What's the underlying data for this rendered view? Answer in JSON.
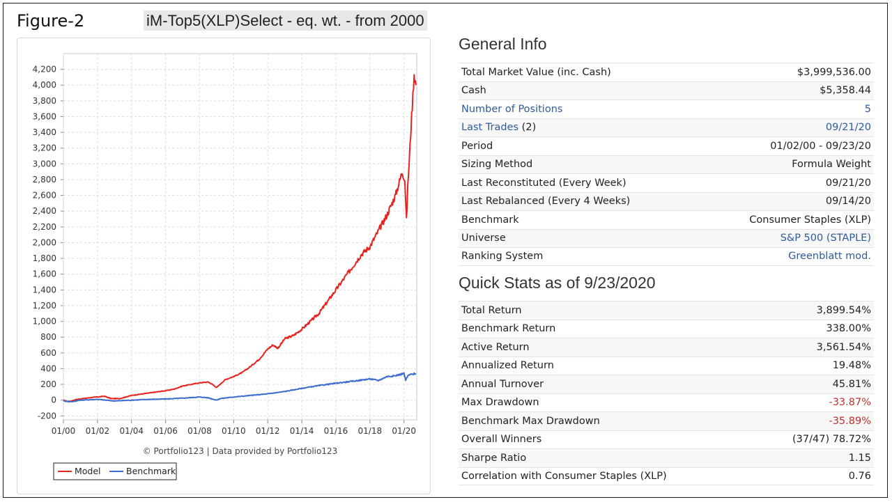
{
  "figure_label": "Figure-2",
  "figure_title": "iM-Top5(XLP)Select - eq. wt. - from 2000",
  "chart_data": {
    "type": "line",
    "x_ticks": [
      "01/00",
      "01/02",
      "01/04",
      "01/06",
      "01/08",
      "01/10",
      "01/12",
      "01/14",
      "01/16",
      "01/18",
      "01/20"
    ],
    "y_ticks": [
      -200,
      0,
      200,
      400,
      600,
      800,
      1000,
      1200,
      1400,
      1600,
      1800,
      2000,
      2200,
      2400,
      2600,
      2800,
      3000,
      3200,
      3400,
      3600,
      3800,
      4000,
      4200
    ],
    "y_tick_labels": [
      "-200",
      "0",
      "200",
      "400",
      "600",
      "800",
      "1,000",
      "1,200",
      "1,400",
      "1,600",
      "1,800",
      "2,000",
      "2,200",
      "2,400",
      "2,600",
      "2,800",
      "3,000",
      "3,200",
      "3,400",
      "3,600",
      "3,800",
      "4,000",
      "4,200"
    ],
    "xlim": [
      2000.0,
      2020.75
    ],
    "ylim": [
      -250,
      4400
    ],
    "grid": true,
    "legend_position": "bottom-left",
    "credit": "© Portfolio123 | Data provided by Portfolio123",
    "series": [
      {
        "name": "Model",
        "color": "#e8231f",
        "x": [
          2000.0,
          2000.3,
          2000.8,
          2001.5,
          2002.0,
          2002.4,
          2002.8,
          2003.3,
          2004.0,
          2005.0,
          2006.0,
          2006.5,
          2007.0,
          2007.5,
          2008.0,
          2008.5,
          2008.75,
          2009.0,
          2009.2,
          2009.5,
          2010.0,
          2010.5,
          2011.0,
          2011.5,
          2012.0,
          2012.3,
          2012.6,
          2013.0,
          2013.5,
          2014.0,
          2014.5,
          2015.0,
          2015.5,
          2016.0,
          2016.5,
          2017.0,
          2017.5,
          2018.0,
          2018.5,
          2019.0,
          2019.5,
          2019.9,
          2020.05,
          2020.15,
          2020.22,
          2020.3,
          2020.45,
          2020.6,
          2020.7
        ],
        "y": [
          0,
          -20,
          10,
          30,
          40,
          50,
          20,
          20,
          60,
          90,
          120,
          140,
          180,
          200,
          220,
          230,
          200,
          160,
          200,
          260,
          300,
          350,
          430,
          520,
          650,
          700,
          660,
          780,
          820,
          900,
          1000,
          1100,
          1250,
          1400,
          1550,
          1700,
          1850,
          1950,
          2150,
          2350,
          2600,
          2900,
          2800,
          2280,
          2700,
          3000,
          3600,
          4150,
          4000
        ]
      },
      {
        "name": "Benchmark",
        "color": "#3d6dcc",
        "x": [
          2000.0,
          2000.5,
          2001.0,
          2002.0,
          2003.0,
          2004.0,
          2005.0,
          2006.0,
          2007.0,
          2008.0,
          2008.5,
          2009.0,
          2009.2,
          2010.0,
          2011.0,
          2012.0,
          2013.0,
          2014.0,
          2015.0,
          2016.0,
          2017.0,
          2018.0,
          2018.5,
          2019.0,
          2019.5,
          2020.0,
          2020.1,
          2020.2,
          2020.3,
          2020.5,
          2020.7
        ],
        "y": [
          -10,
          -20,
          0,
          10,
          -10,
          0,
          10,
          15,
          25,
          40,
          30,
          0,
          20,
          40,
          60,
          80,
          110,
          150,
          185,
          215,
          240,
          270,
          250,
          300,
          310,
          340,
          250,
          300,
          320,
          330,
          340
        ]
      }
    ]
  },
  "general_info": {
    "title": "General Info",
    "rows": [
      {
        "label": "Total Market Value (inc. Cash)",
        "value": "$3,999,536.00"
      },
      {
        "label": "Cash",
        "value": "$5,358.44"
      },
      {
        "label": "Number of Positions",
        "value": "5"
      },
      {
        "label": "Last Trades",
        "label_suffix": " (2)",
        "value": "09/21/20"
      },
      {
        "label": "Period",
        "value": "01/02/00 - 09/23/20"
      },
      {
        "label": "Sizing Method",
        "value": "Formula Weight"
      },
      {
        "label": "Last Reconstituted (Every Week)",
        "value": "09/21/20"
      },
      {
        "label": "Last Rebalanced (Every 4 Weeks)",
        "value": "09/14/20"
      },
      {
        "label": "Benchmark",
        "value": "Consumer Staples (XLP)"
      },
      {
        "label": "Universe",
        "value": "S&P 500 (STAPLE)"
      },
      {
        "label": "Ranking System",
        "value": "Greenblatt mod."
      }
    ]
  },
  "quick_stats": {
    "title": "Quick Stats as of 9/23/2020",
    "rows": [
      {
        "label": "Total Return",
        "value": "3,899.54%"
      },
      {
        "label": "Benchmark Return",
        "value": "338.00%"
      },
      {
        "label": "Active Return",
        "value": "3,561.54%"
      },
      {
        "label": "Annualized Return",
        "value": "19.48%"
      },
      {
        "label": "Annual Turnover",
        "value": "45.81%"
      },
      {
        "label": "Max Drawdown",
        "value": "-33.87%"
      },
      {
        "label": "Benchmark Max Drawdown",
        "value": "-35.89%"
      },
      {
        "label": "Overall Winners",
        "value": "(37/47) 78.72%"
      },
      {
        "label": "Sharpe Ratio",
        "value": "1.15"
      },
      {
        "label": "Correlation with Consumer Staples (XLP)",
        "value": "0.76"
      }
    ]
  },
  "colors": {
    "link": "#2e5b9a",
    "negative": "#c0302b"
  }
}
